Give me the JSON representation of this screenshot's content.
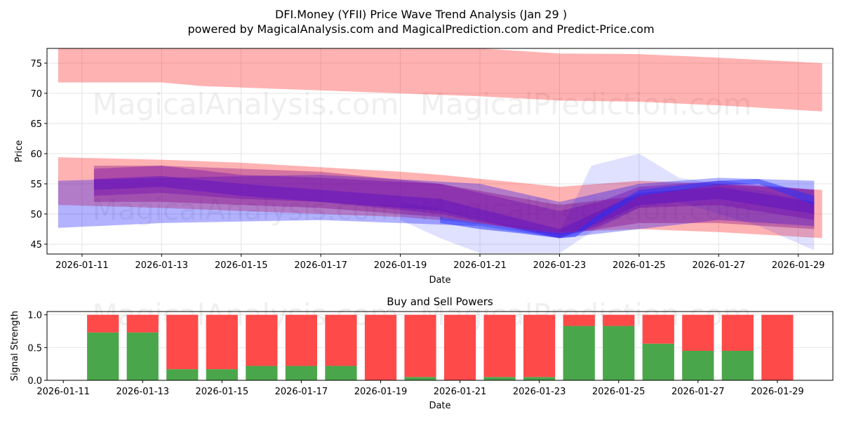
{
  "title_line1": "DFI.Money (YFII) Price Wave Trend Analysis (Jan 29 )",
  "title_line2": "powered by MagicalAnalysis.com and MagicalPrediction.com and Predict-Price.com",
  "watermarks": [
    "MagicalAnalysis.com",
    "MagicalPrediction.com"
  ],
  "chart_data": [
    {
      "type": "area",
      "title": "",
      "xlabel": "Date",
      "ylabel": "Price",
      "x_origin": "2026-01-11",
      "x_unit": "days since x_origin",
      "xlim": [
        -0.88,
        18.87
      ],
      "ylim": [
        43.37,
        77.44
      ],
      "xticks": [
        "2026-01-11",
        "2026-01-13",
        "2026-01-15",
        "2026-01-17",
        "2026-01-19",
        "2026-01-21",
        "2026-01-23",
        "2026-01-25",
        "2026-01-27",
        "2026-01-29"
      ],
      "yticks": [
        45,
        50,
        55,
        60,
        65,
        70,
        75
      ],
      "grid": true,
      "bands": [
        {
          "name": "upper-red-band",
          "color": "#ff0000",
          "alpha": 0.3,
          "x": [
            -0.6,
            2,
            3,
            8,
            10,
            12,
            14,
            16,
            18.6
          ],
          "upper": [
            77.44,
            77.44,
            77.44,
            77.44,
            77.44,
            76.6,
            76.5,
            75.9,
            75.0
          ],
          "lower": [
            71.8,
            71.8,
            71.2,
            70.0,
            69.5,
            68.8,
            68.6,
            68.0,
            67.0
          ]
        },
        {
          "name": "lower-red-band",
          "color": "#ff0000",
          "alpha": 0.3,
          "x": [
            -0.6,
            2,
            4,
            8,
            9,
            12,
            14,
            16,
            18.6
          ],
          "upper": [
            59.4,
            59.0,
            58.5,
            57.0,
            56.5,
            54.5,
            55.5,
            55.0,
            54.0
          ],
          "lower": [
            51.5,
            51.0,
            50.5,
            49.5,
            49.0,
            47.0,
            47.5,
            47.0,
            46.0
          ]
        },
        {
          "name": "blue-band",
          "color": "#0000ff",
          "alpha": 0.3,
          "x": [
            -0.6,
            2,
            6,
            10,
            12,
            14,
            16,
            18.4
          ],
          "upper": [
            55.5,
            56.0,
            56.5,
            55.0,
            52.0,
            55.0,
            56.0,
            55.5
          ],
          "lower": [
            47.7,
            48.5,
            49.0,
            48.0,
            46.0,
            47.5,
            49.0,
            48.0
          ]
        },
        {
          "name": "blue-spike-band",
          "color": "#0000ff",
          "alpha": 0.12,
          "x": [
            8,
            9,
            10,
            11,
            12,
            12.8,
            14,
            15,
            16,
            17,
            18.4
          ],
          "upper": [
            52,
            51,
            49,
            48,
            47,
            58,
            60,
            56,
            55,
            54,
            52
          ],
          "lower": [
            49,
            46,
            43.5,
            43.5,
            43.5,
            47,
            51,
            52,
            50,
            48,
            44
          ]
        },
        {
          "name": "purple-band-1",
          "color": "#800080",
          "alpha": 0.35,
          "x": [
            0.3,
            2,
            6,
            9,
            12,
            14,
            16,
            18.4
          ],
          "upper": [
            58,
            58,
            57,
            55,
            51.5,
            53,
            55,
            54
          ],
          "lower": [
            52,
            52,
            51,
            49.5,
            46.5,
            48.5,
            48.5,
            47.5
          ]
        },
        {
          "name": "purple-band-2",
          "color": "#6a00b0",
          "alpha": 0.35,
          "x": [
            0.3,
            2,
            4,
            6,
            9,
            12,
            13,
            14,
            16,
            18.4
          ],
          "upper": [
            57.5,
            58,
            56.5,
            56,
            55,
            50.5,
            52,
            54.5,
            55.5,
            54
          ],
          "lower": [
            53,
            53.5,
            52.5,
            52,
            50,
            46,
            48,
            51,
            51.5,
            49
          ]
        },
        {
          "name": "purple-core-band",
          "color": "#5a10c0",
          "alpha": 0.45,
          "x": [
            0.3,
            2,
            4,
            6,
            9,
            12,
            13,
            14,
            16,
            18.4
          ],
          "upper": [
            55.8,
            56.3,
            55,
            54,
            52.5,
            47.5,
            50.5,
            53.5,
            54.5,
            52
          ],
          "lower": [
            54,
            54.5,
            53,
            52,
            50.5,
            46,
            48.5,
            51.5,
            52.5,
            50
          ]
        },
        {
          "name": "blue-line-band",
          "color": "#2030ff",
          "alpha": 0.5,
          "x": [
            9,
            10,
            11,
            12,
            12.4,
            13,
            14,
            16,
            17,
            18.4
          ],
          "upper": [
            49.5,
            48.5,
            47.5,
            46.8,
            47,
            50,
            54,
            55.5,
            55.8,
            53
          ],
          "lower": [
            48.5,
            47.5,
            46.8,
            46,
            46.2,
            49,
            53,
            54.8,
            55,
            51.5
          ]
        }
      ]
    },
    {
      "type": "bar",
      "title": "Buy and Sell Powers",
      "xlabel": "Date",
      "ylabel": "Signal Strength",
      "ylim": [
        0,
        1.05
      ],
      "xlim": [
        "2026-01-10.6",
        "2026-01-30.4"
      ],
      "xticks": [
        "2026-01-11",
        "2026-01-13",
        "2026-01-15",
        "2026-01-17",
        "2026-01-19",
        "2026-01-21",
        "2026-01-23",
        "2026-01-25",
        "2026-01-27",
        "2026-01-29"
      ],
      "yticks": [
        "0.0",
        "0.5",
        "1.0"
      ],
      "categories": [
        "2026-01-12",
        "2026-01-13",
        "2026-01-14",
        "2026-01-15",
        "2026-01-16",
        "2026-01-17",
        "2026-01-18",
        "2026-01-19",
        "2026-01-20",
        "2026-01-21",
        "2026-01-22",
        "2026-01-23",
        "2026-01-24",
        "2026-01-25",
        "2026-01-26",
        "2026-01-27",
        "2026-01-28",
        "2026-01-29"
      ],
      "series": [
        {
          "name": "Buy",
          "color": "#4aa64a",
          "values": [
            0.73,
            0.73,
            0.17,
            0.17,
            0.22,
            0.22,
            0.22,
            0.0,
            0.05,
            0.0,
            0.05,
            0.05,
            0.83,
            0.83,
            0.56,
            0.45,
            0.45,
            0.0
          ]
        },
        {
          "name": "Sell",
          "color": "#ff4a4a",
          "values": [
            0.27,
            0.27,
            0.83,
            0.83,
            0.78,
            0.78,
            0.78,
            1.0,
            0.95,
            1.0,
            0.95,
            0.95,
            0.17,
            0.17,
            0.44,
            0.55,
            0.55,
            1.0
          ]
        }
      ]
    }
  ]
}
